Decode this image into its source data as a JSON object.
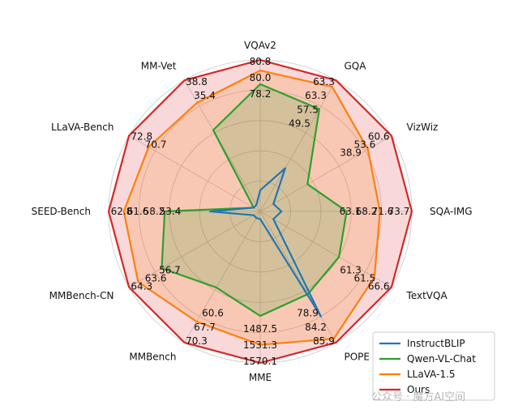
{
  "chart_data": {
    "type": "radar",
    "axes": [
      "VQAv2",
      "GQA",
      "VizWiz",
      "SQA-IMG",
      "TextVQA",
      "POPE",
      "MME",
      "MMBench",
      "MMBench-CN",
      "SEED-Bench",
      "LLaVA-Bench",
      "MM-Vet"
    ],
    "value_labels": [
      [
        "80.8",
        "80.0",
        "78.2"
      ],
      [
        "63.3",
        "63.3",
        "57.5",
        "49.5"
      ],
      [
        "60.6",
        "53.6",
        "38.9"
      ],
      [
        "73.7",
        "71.6",
        "68.2",
        "63.1"
      ],
      [
        "66.6",
        "61.5",
        "61.3"
      ],
      [
        "85.9",
        "84.2",
        "78.9"
      ],
      [
        "1570.1",
        "1531.3",
        "1487.5"
      ],
      [
        "70.3",
        "67.7",
        "60.6"
      ],
      [
        "64.3",
        "63.6",
        "56.7"
      ],
      [
        "62.8",
        "61.6",
        "58.2",
        "53.4"
      ],
      [
        "72.8",
        "70.7"
      ],
      [
        "38.8",
        "35.4"
      ]
    ],
    "normalized_scale": [
      0,
      1
    ],
    "series": [
      {
        "name": "InstructBLIP",
        "color": "#1f77b4",
        "filled": false,
        "values": [
          0.14,
          0.33,
          0.1,
          0.14,
          0.1,
          0.8,
          0.05,
          0.05,
          0.05,
          0.33,
          0.05,
          0.05
        ]
      },
      {
        "name": "Qwen-VL-Chat",
        "color": "#2ca02c",
        "filled": true,
        "values": [
          0.84,
          0.78,
          0.36,
          0.57,
          0.6,
          0.63,
          0.69,
          0.58,
          0.75,
          0.63,
          0.05,
          0.62
        ]
      },
      {
        "name": "LLaVA-1.5",
        "color": "#ff7f0e",
        "filled": true,
        "values": [
          0.93,
          0.95,
          0.82,
          0.79,
          0.87,
          0.97,
          0.88,
          0.84,
          0.93,
          0.9,
          0.85,
          0.83
        ]
      },
      {
        "name": "Ours",
        "color": "#d62728",
        "filled": true,
        "values": [
          1,
          1,
          1,
          1,
          1,
          1,
          1,
          1,
          1,
          1,
          1,
          1
        ]
      }
    ],
    "legend_position": "bottom-right"
  },
  "watermark": "公众号 · 魔方AI空间"
}
